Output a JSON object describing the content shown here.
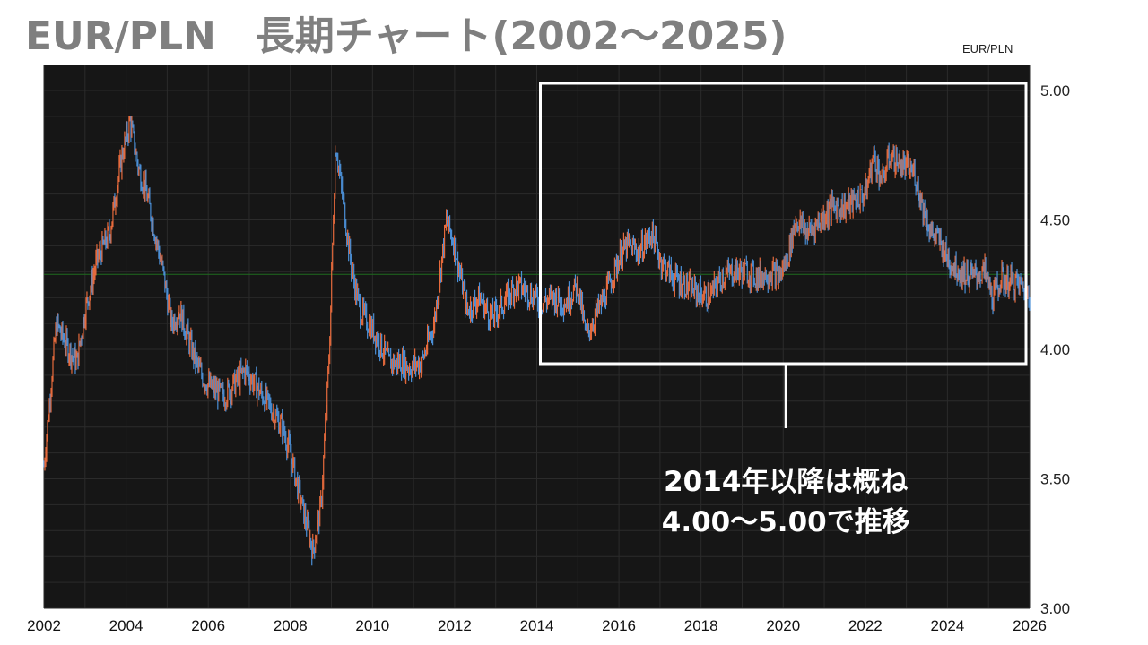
{
  "title": "EUR/PLN　長期チャート(2002～2025)",
  "series_label": "EUR/PLN",
  "colors": {
    "background": "#161616",
    "grid": "#2b2b2b",
    "reference_line": "#1f6b1f",
    "up_candle": "#e66a3c",
    "down_candle": "#4b8fd6",
    "box": "#ffffff"
  },
  "annotation": {
    "lines": [
      "2014年以降は概ね",
      "4.00～5.00で推移"
    ],
    "range_start": 2014,
    "range_end": 2026,
    "range_low": 4.0,
    "range_high": 5.0
  },
  "chart_data": {
    "type": "line",
    "xlim": [
      2002,
      2026
    ],
    "ylim": [
      3.0,
      5.0
    ],
    "x_ticks": [
      "2002",
      "2004",
      "2006",
      "2008",
      "2010",
      "2012",
      "2014",
      "2016",
      "2018",
      "2020",
      "2022",
      "2024",
      "2026"
    ],
    "y_ticks": [
      "3.00",
      "3.50",
      "4.00",
      "4.50",
      "5.00"
    ],
    "reference_level": 4.29,
    "series": [
      {
        "values": [
          [
            2002.0,
            3.55
          ],
          [
            2002.3,
            4.1
          ],
          [
            2002.6,
            4.0
          ],
          [
            2002.8,
            3.95
          ],
          [
            2003.0,
            4.15
          ],
          [
            2003.3,
            4.35
          ],
          [
            2003.6,
            4.45
          ],
          [
            2003.9,
            4.75
          ],
          [
            2004.1,
            4.88
          ],
          [
            2004.3,
            4.7
          ],
          [
            2004.5,
            4.6
          ],
          [
            2004.7,
            4.45
          ],
          [
            2004.9,
            4.3
          ],
          [
            2005.1,
            4.1
          ],
          [
            2005.3,
            4.15
          ],
          [
            2005.5,
            4.05
          ],
          [
            2005.7,
            3.95
          ],
          [
            2005.9,
            3.88
          ],
          [
            2006.1,
            3.85
          ],
          [
            2006.4,
            3.82
          ],
          [
            2006.7,
            3.88
          ],
          [
            2006.9,
            3.92
          ],
          [
            2007.2,
            3.85
          ],
          [
            2007.5,
            3.78
          ],
          [
            2007.8,
            3.7
          ],
          [
            2008.0,
            3.6
          ],
          [
            2008.2,
            3.45
          ],
          [
            2008.4,
            3.32
          ],
          [
            2008.55,
            3.22
          ],
          [
            2008.75,
            3.4
          ],
          [
            2008.95,
            4.0
          ],
          [
            2009.1,
            4.8
          ],
          [
            2009.3,
            4.55
          ],
          [
            2009.5,
            4.3
          ],
          [
            2009.7,
            4.15
          ],
          [
            2009.9,
            4.1
          ],
          [
            2010.1,
            4.05
          ],
          [
            2010.4,
            3.95
          ],
          [
            2010.7,
            3.95
          ],
          [
            2010.9,
            3.93
          ],
          [
            2011.2,
            3.95
          ],
          [
            2011.5,
            4.1
          ],
          [
            2011.8,
            4.5
          ],
          [
            2012.0,
            4.4
          ],
          [
            2012.3,
            4.15
          ],
          [
            2012.6,
            4.2
          ],
          [
            2012.9,
            4.12
          ],
          [
            2013.2,
            4.18
          ],
          [
            2013.5,
            4.25
          ],
          [
            2013.8,
            4.22
          ],
          [
            2014.1,
            4.18
          ],
          [
            2014.4,
            4.2
          ],
          [
            2014.7,
            4.18
          ],
          [
            2015.0,
            4.25
          ],
          [
            2015.2,
            4.05
          ],
          [
            2015.4,
            4.12
          ],
          [
            2015.7,
            4.22
          ],
          [
            2016.0,
            4.35
          ],
          [
            2016.2,
            4.4
          ],
          [
            2016.5,
            4.38
          ],
          [
            2016.8,
            4.45
          ],
          [
            2017.0,
            4.35
          ],
          [
            2017.3,
            4.28
          ],
          [
            2017.6,
            4.25
          ],
          [
            2017.9,
            4.22
          ],
          [
            2018.2,
            4.2
          ],
          [
            2018.5,
            4.28
          ],
          [
            2018.8,
            4.3
          ],
          [
            2019.1,
            4.3
          ],
          [
            2019.4,
            4.28
          ],
          [
            2019.7,
            4.3
          ],
          [
            2019.9,
            4.28
          ],
          [
            2020.1,
            4.35
          ],
          [
            2020.3,
            4.5
          ],
          [
            2020.6,
            4.45
          ],
          [
            2020.9,
            4.5
          ],
          [
            2021.2,
            4.55
          ],
          [
            2021.5,
            4.55
          ],
          [
            2021.8,
            4.58
          ],
          [
            2022.0,
            4.6
          ],
          [
            2022.2,
            4.75
          ],
          [
            2022.4,
            4.65
          ],
          [
            2022.6,
            4.75
          ],
          [
            2022.8,
            4.72
          ],
          [
            2023.0,
            4.7
          ],
          [
            2023.2,
            4.68
          ],
          [
            2023.4,
            4.55
          ],
          [
            2023.6,
            4.45
          ],
          [
            2023.8,
            4.42
          ],
          [
            2024.0,
            4.35
          ],
          [
            2024.3,
            4.3
          ],
          [
            2024.6,
            4.28
          ],
          [
            2024.9,
            4.3
          ],
          [
            2025.1,
            4.2
          ],
          [
            2025.3,
            4.27
          ],
          [
            2025.6,
            4.26
          ],
          [
            2025.9,
            4.24
          ],
          [
            2026.0,
            4.22
          ]
        ]
      }
    ]
  }
}
